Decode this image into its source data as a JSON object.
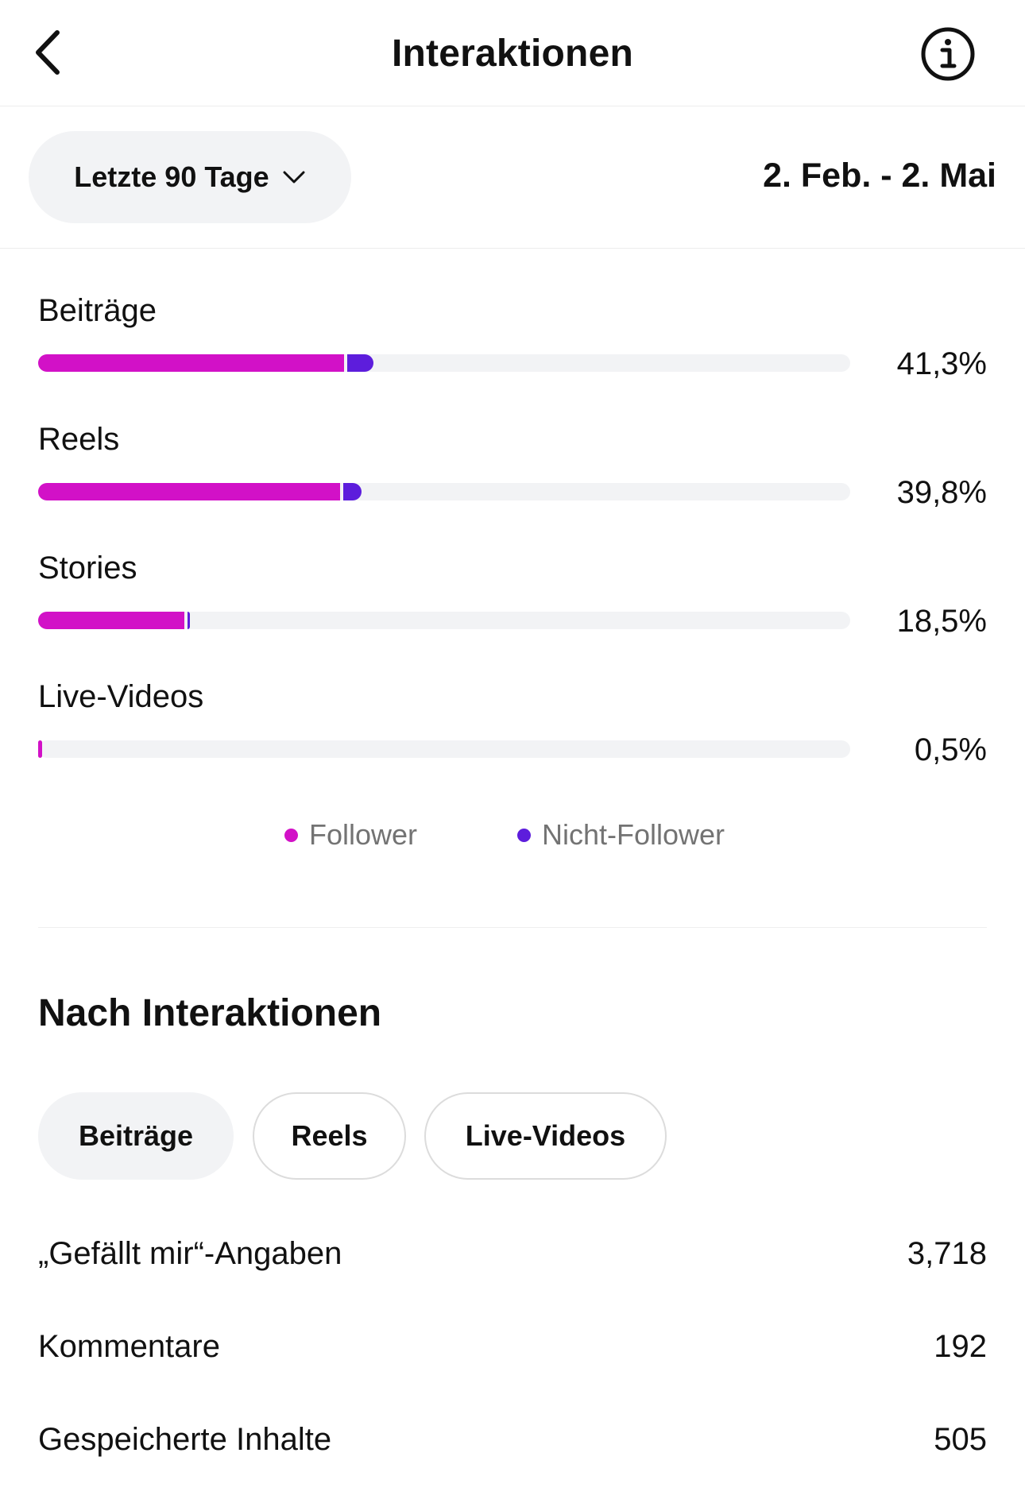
{
  "header": {
    "title": "Interaktionen",
    "back_icon": "chevron-left-icon",
    "info_icon": "info-icon"
  },
  "range": {
    "selected": "Letzte 90 Tage",
    "dates": "2. Feb. - 2. Mai"
  },
  "colors": {
    "follower": "#d211c7",
    "non_follower": "#5d1ddc",
    "track": "#f2f3f5"
  },
  "breakdown": [
    {
      "label": "Beiträge",
      "value_text": "41,3%",
      "total": 0.413,
      "follower_share": 0.377
    },
    {
      "label": "Reels",
      "value_text": "39,8%",
      "total": 0.398,
      "follower_share": 0.372
    },
    {
      "label": "Stories",
      "value_text": "18,5%",
      "total": 0.185,
      "follower_share": 0.18
    },
    {
      "label": "Live-Videos",
      "value_text": "0,5%",
      "total": 0.005,
      "follower_share": 0.005
    }
  ],
  "legend": {
    "follower": "Follower",
    "non_follower": "Nicht-Follower"
  },
  "section": {
    "title": "Nach Interaktionen",
    "chips": [
      {
        "label": "Beiträge",
        "active": true
      },
      {
        "label": "Reels",
        "active": false
      },
      {
        "label": "Live-Videos",
        "active": false
      }
    ]
  },
  "stats": [
    {
      "label": "„Gefällt mir“-Angaben",
      "value": "3,718"
    },
    {
      "label": "Kommentare",
      "value": "192"
    },
    {
      "label": "Gespeicherte Inhalte",
      "value": "505"
    }
  ]
}
